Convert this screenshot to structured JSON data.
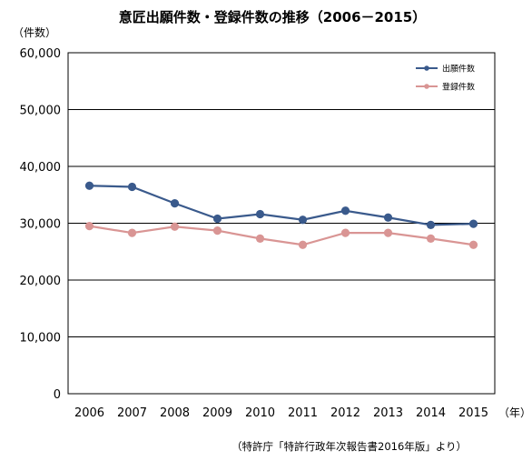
{
  "chart_data": {
    "type": "line",
    "title": "意匠出願件数・登録件数の推移（2006－2015）",
    "ylabel": "（件数）",
    "xlabel": "（年）",
    "x": [
      "2006",
      "2007",
      "2008",
      "2009",
      "2010",
      "2011",
      "2012",
      "2013",
      "2014",
      "2015"
    ],
    "ylim": [
      0,
      60000
    ],
    "yticks": [
      0,
      10000,
      20000,
      30000,
      40000,
      50000,
      60000
    ],
    "ytick_labels": [
      "0",
      "10,000",
      "20,000",
      "30,000",
      "40,000",
      "50,000",
      "60,000"
    ],
    "grid": true,
    "legend_position": "top-right",
    "series": [
      {
        "name": "出願件数",
        "color": "#3a5a8c",
        "values": [
          36600,
          36400,
          33500,
          30800,
          31600,
          30600,
          32200,
          31000,
          29700,
          29900
        ]
      },
      {
        "name": "登録件数",
        "color": "#d99594",
        "values": [
          29500,
          28300,
          29400,
          28700,
          27300,
          26200,
          28300,
          28300,
          27300,
          26200
        ]
      }
    ],
    "source": "（特許庁「特許行政年次報告書2016年版」より）"
  }
}
